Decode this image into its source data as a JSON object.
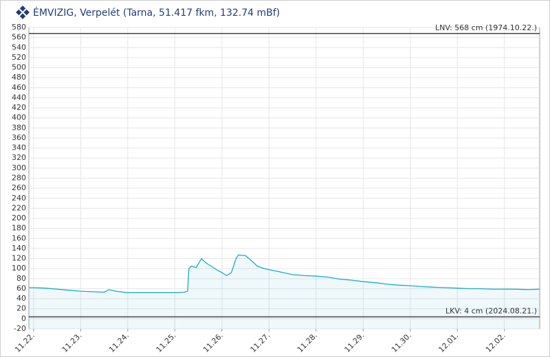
{
  "chart_data": {
    "type": "line",
    "title": "ÉMVIZIG, Verpelét (Tarna, 51.417 fkm, 132.74 mBf)",
    "x": [
      -0.1,
      0,
      0.25,
      0.5,
      0.75,
      1,
      1.25,
      1.5,
      1.6,
      1.75,
      2,
      2.25,
      2.5,
      2.75,
      3,
      3.2,
      3.27,
      3.3,
      3.35,
      3.45,
      3.57,
      3.65,
      3.8,
      3.9,
      4.0,
      4.1,
      4.2,
      4.3,
      4.35,
      4.5,
      4.6,
      4.75,
      4.9,
      5.0,
      5.25,
      5.5,
      5.75,
      6,
      6.25,
      6.5,
      6.75,
      7,
      7.25,
      7.5,
      7.75,
      8,
      8.25,
      8.5,
      8.75,
      9,
      9.25,
      9.5,
      9.75,
      10,
      10.25,
      10.5,
      10.75
    ],
    "values": [
      62,
      62,
      61,
      59,
      57,
      55,
      54,
      53,
      58,
      55,
      52,
      52,
      52,
      52,
      52,
      53,
      55,
      100,
      105,
      102,
      120,
      112,
      103,
      97,
      92,
      86,
      92,
      120,
      127,
      126,
      118,
      105,
      100,
      98,
      93,
      88,
      86,
      85,
      83,
      79,
      77,
      74,
      72,
      69,
      67,
      66,
      64,
      63,
      62,
      61,
      60,
      60,
      59,
      59,
      59,
      58,
      59
    ],
    "color": "#17a9cf",
    "xlim": [
      -0.1,
      10.75
    ],
    "xticks": [
      {
        "value": 0,
        "label": "11.22."
      },
      {
        "value": 1,
        "label": "11.23."
      },
      {
        "value": 2,
        "label": "11.24."
      },
      {
        "value": 3,
        "label": "11.25."
      },
      {
        "value": 4,
        "label": "11.26."
      },
      {
        "value": 5,
        "label": "11.27."
      },
      {
        "value": 6,
        "label": "11.28."
      },
      {
        "value": 7,
        "label": "11.29."
      },
      {
        "value": 8,
        "label": "11.30."
      },
      {
        "value": 9,
        "label": "12.01."
      },
      {
        "value": 10,
        "label": "12.02."
      }
    ],
    "ylim": [
      -20,
      580
    ],
    "yticks": [
      -20,
      0,
      20,
      40,
      60,
      80,
      100,
      120,
      140,
      160,
      180,
      200,
      220,
      240,
      260,
      280,
      300,
      320,
      340,
      360,
      380,
      400,
      420,
      440,
      460,
      480,
      500,
      520,
      540,
      560,
      580
    ],
    "grid": true,
    "annotations": [
      {
        "label": "LNV: 568 cm (1974.10.22.)",
        "value": 568
      },
      {
        "label": "LKV: 4 cm (2024.08.21.)",
        "value": 4
      }
    ]
  }
}
